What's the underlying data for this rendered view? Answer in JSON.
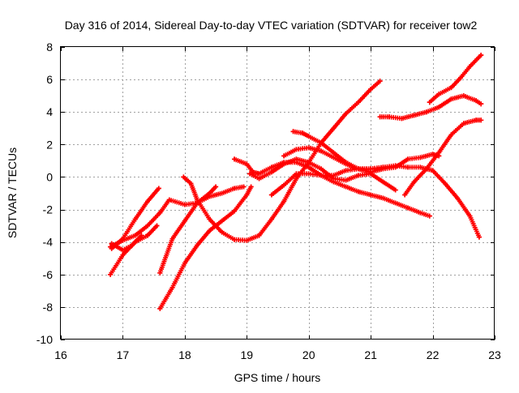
{
  "chart_data": {
    "type": "scatter",
    "title": "Day 316 of 2014, Sidereal Day-to-day VTEC variation (SDTVAR) for receiver tow2",
    "xlabel": "GPS time / hours",
    "ylabel": "SDTVAR / TECUs",
    "xlim": [
      16,
      23
    ],
    "ylim": [
      -10,
      8
    ],
    "xticks": [
      16,
      17,
      18,
      19,
      20,
      21,
      22,
      23
    ],
    "yticks": [
      -10,
      -8,
      -6,
      -4,
      -2,
      0,
      2,
      4,
      6,
      8
    ],
    "grid": true,
    "legend": "none",
    "marker": "plus",
    "color": "#ff0000",
    "series": [
      {
        "x": [
          16.82,
          17.0,
          17.2,
          17.4,
          17.58
        ],
        "y": [
          -4.4,
          -3.8,
          -2.6,
          -1.5,
          -0.7
        ]
      },
      {
        "x": [
          16.82,
          17.0,
          17.15,
          17.3
        ],
        "y": [
          -4.1,
          -4.5,
          -4.2,
          -3.6
        ]
      },
      {
        "x": [
          16.8,
          17.0,
          17.2,
          17.4,
          17.6,
          17.75,
          18.0,
          18.2,
          18.4,
          18.6,
          18.8,
          18.95
        ],
        "y": [
          -4.3,
          -3.9,
          -3.6,
          -3.0,
          -2.2,
          -1.4,
          -1.7,
          -1.6,
          -1.2,
          -1.0,
          -0.7,
          -0.6
        ]
      },
      {
        "x": [
          16.8,
          17.0,
          17.2,
          17.4,
          17.55
        ],
        "y": [
          -6.0,
          -4.8,
          -4.0,
          -3.6,
          -3.0
        ]
      },
      {
        "x": [
          17.6,
          17.8,
          18.0,
          18.2,
          18.4,
          18.5
        ],
        "y": [
          -5.9,
          -3.8,
          -2.7,
          -1.6,
          -1.0,
          -0.6
        ]
      },
      {
        "x": [
          17.6,
          17.8,
          18.0,
          18.2,
          18.4,
          18.6,
          18.8,
          19.0,
          19.07
        ],
        "y": [
          -8.1,
          -6.8,
          -5.3,
          -4.2,
          -3.3,
          -2.7,
          -2.1,
          -1.1,
          -0.6
        ]
      },
      {
        "x": [
          17.98,
          18.1,
          18.2,
          18.4,
          18.6,
          18.8,
          19.0,
          19.2,
          19.4,
          19.6,
          19.8,
          20.0,
          20.2,
          20.4,
          20.6,
          20.8,
          21.0,
          21.15
        ],
        "y": [
          0.0,
          -0.4,
          -1.4,
          -2.6,
          -3.4,
          -3.85,
          -3.9,
          -3.6,
          -2.6,
          -1.5,
          -0.1,
          0.9,
          2.1,
          3.0,
          3.9,
          4.6,
          5.4,
          5.9
        ]
      },
      {
        "x": [
          18.8,
          19.0,
          19.1,
          19.2,
          19.4,
          19.6,
          19.8,
          20.0,
          20.2,
          20.4,
          20.6,
          20.8,
          21.0,
          21.2,
          21.4,
          21.6,
          21.8,
          21.95
        ],
        "y": [
          1.1,
          0.8,
          0.3,
          0.2,
          0.6,
          0.9,
          0.9,
          0.6,
          0.1,
          -0.3,
          -0.6,
          -0.9,
          -1.1,
          -1.3,
          -1.6,
          -1.9,
          -2.2,
          -2.4
        ]
      },
      {
        "x": [
          19.05,
          19.2,
          19.4,
          19.6,
          19.8,
          20.0,
          20.2,
          20.4,
          20.6,
          20.8,
          21.0,
          21.2,
          21.4
        ],
        "y": [
          0.2,
          -0.1,
          0.3,
          0.8,
          1.1,
          0.9,
          0.5,
          -0.1,
          -0.2,
          0.1,
          0.2,
          -0.3,
          -0.8
        ]
      },
      {
        "x": [
          19.4,
          19.6,
          19.8,
          20.0,
          20.2,
          20.4,
          20.6,
          20.8,
          21.0,
          21.2,
          21.4,
          21.6,
          21.8,
          22.0,
          22.2,
          22.4,
          22.6,
          22.75
        ],
        "y": [
          -1.1,
          -0.5,
          0.2,
          0.2,
          0.1,
          0.1,
          0.4,
          0.5,
          0.5,
          0.6,
          0.7,
          0.6,
          0.6,
          0.4,
          -0.4,
          -1.3,
          -2.4,
          -3.7
        ]
      },
      {
        "x": [
          19.75,
          19.9,
          20.0,
          20.2,
          20.4,
          20.6,
          20.8,
          21.0,
          21.2
        ],
        "y": [
          2.8,
          2.7,
          2.5,
          2.1,
          1.5,
          0.9,
          0.5,
          0.5,
          0.6
        ]
      },
      {
        "x": [
          19.6,
          19.8,
          20.0,
          20.2,
          20.4,
          20.6,
          20.8,
          21.0,
          21.2,
          21.4,
          21.6,
          21.8,
          22.0,
          22.1
        ],
        "y": [
          1.3,
          1.7,
          1.8,
          1.6,
          1.2,
          0.8,
          0.5,
          0.3,
          0.5,
          0.6,
          1.1,
          1.2,
          1.4,
          1.3
        ]
      },
      {
        "x": [
          21.15,
          21.3,
          21.5,
          21.7,
          21.9,
          22.1,
          22.3,
          22.5,
          22.7,
          22.78
        ],
        "y": [
          3.7,
          3.7,
          3.6,
          3.8,
          4.0,
          4.3,
          4.8,
          5.0,
          4.7,
          4.5
        ]
      },
      {
        "x": [
          21.95,
          22.1,
          22.3,
          22.45,
          22.6,
          22.78
        ],
        "y": [
          4.6,
          5.1,
          5.5,
          6.1,
          6.8,
          7.5
        ]
      },
      {
        "x": [
          21.55,
          21.7,
          21.9,
          22.1,
          22.3,
          22.5,
          22.7,
          22.78
        ],
        "y": [
          -1.1,
          -0.3,
          0.5,
          1.5,
          2.6,
          3.3,
          3.5,
          3.5
        ]
      }
    ]
  }
}
